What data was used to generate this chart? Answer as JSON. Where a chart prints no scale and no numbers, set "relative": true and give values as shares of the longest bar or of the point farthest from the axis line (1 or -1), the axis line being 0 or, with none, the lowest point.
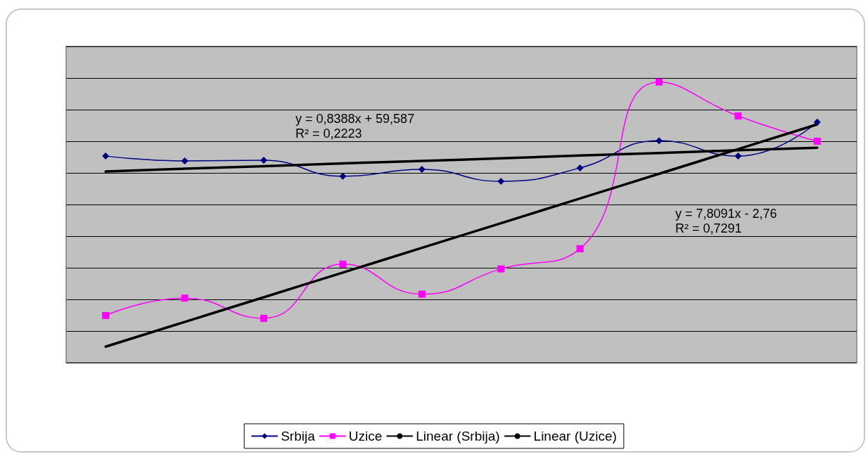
{
  "chart_data": {
    "type": "line",
    "relative": true,
    "grid": "y",
    "legend": "bottom",
    "categories": [
      null,
      null,
      null,
      null,
      null,
      null,
      null,
      null,
      null,
      null
    ],
    "series": [
      {
        "name": "Srbija",
        "color": "#000080",
        "marker": "diamond",
        "values": [
          0.736,
          0.719,
          0.721,
          0.664,
          0.689,
          0.646,
          0.694,
          0.791,
          0.736,
          0.857
        ]
      },
      {
        "name": "Uzice",
        "color": "#ff00ff",
        "marker": "square",
        "values": [
          0.168,
          0.23,
          0.158,
          0.351,
          0.244,
          0.334,
          0.406,
          1,
          0.879,
          0.789
        ]
      },
      {
        "name": "Linear (Srbija)",
        "color": "#000000",
        "marker": "none",
        "values": [
          0.681,
          0.691,
          0.7,
          0.71,
          0.719,
          0.728,
          0.738,
          0.747,
          0.757,
          0.766
        ]
      },
      {
        "name": "Linear (Uzice)",
        "color": "#000000",
        "marker": "none",
        "values": [
          0.057,
          0.145,
          0.233,
          0.321,
          0.409,
          0.497,
          0.585,
          0.673,
          0.761,
          0.849
        ]
      }
    ],
    "annotations": [
      "y = 0,8388x + 59,587\nR² = 0,2223",
      "y = 7,8091x - 2,76\nR² = 0,7291"
    ]
  }
}
